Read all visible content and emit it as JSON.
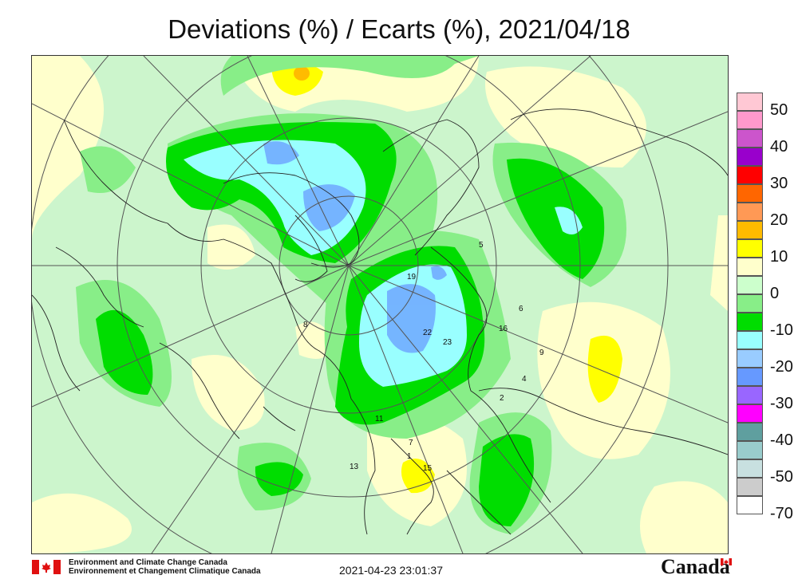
{
  "title": "Deviations (%) / Ecarts (%), 2021/04/18",
  "legend": {
    "levels": [
      {
        "label": "50",
        "color": "#ffc8d4"
      },
      {
        "label": "",
        "color": "#ff99cc"
      },
      {
        "label": "40",
        "color": "#cc55cc"
      },
      {
        "label": "",
        "color": "#9900cc"
      },
      {
        "label": "30",
        "color": "#ff0000"
      },
      {
        "label": "",
        "color": "#ff6600"
      },
      {
        "label": "20",
        "color": "#ff9955"
      },
      {
        "label": "",
        "color": "#ffbb00"
      },
      {
        "label": "10",
        "color": "#ffff00"
      },
      {
        "label": "",
        "color": "#ffffcc"
      },
      {
        "label": "0",
        "color": "#ccffcc"
      },
      {
        "label": "",
        "color": "#88ee88"
      },
      {
        "label": "-10",
        "color": "#00dd00"
      },
      {
        "label": "",
        "color": "#99ffff"
      },
      {
        "label": "-20",
        "color": "#99ccff"
      },
      {
        "label": "",
        "color": "#6699ff"
      },
      {
        "label": "-30",
        "color": "#9966ff"
      },
      {
        "label": "",
        "color": "#ff00ff"
      },
      {
        "label": "-40",
        "color": "#5f9f9f"
      },
      {
        "label": "",
        "color": "#99cccc"
      },
      {
        "label": "-50",
        "color": "#c8e0e0"
      },
      {
        "label": "",
        "color": "#cccccc"
      },
      {
        "label": "-70",
        "color": "#ffffff"
      }
    ]
  },
  "station_values": [
    "19",
    "22",
    "23",
    "16",
    "15",
    "13",
    "11",
    "7",
    "8",
    "5",
    "2",
    "4",
    "6",
    "9",
    "1"
  ],
  "footer": {
    "dept_en": "Environment and Climate Change Canada",
    "dept_fr": "Environnement et Changement Climatique Canada",
    "timestamp": "2021-04-23 23:01:37",
    "wordmark": "Canada"
  }
}
